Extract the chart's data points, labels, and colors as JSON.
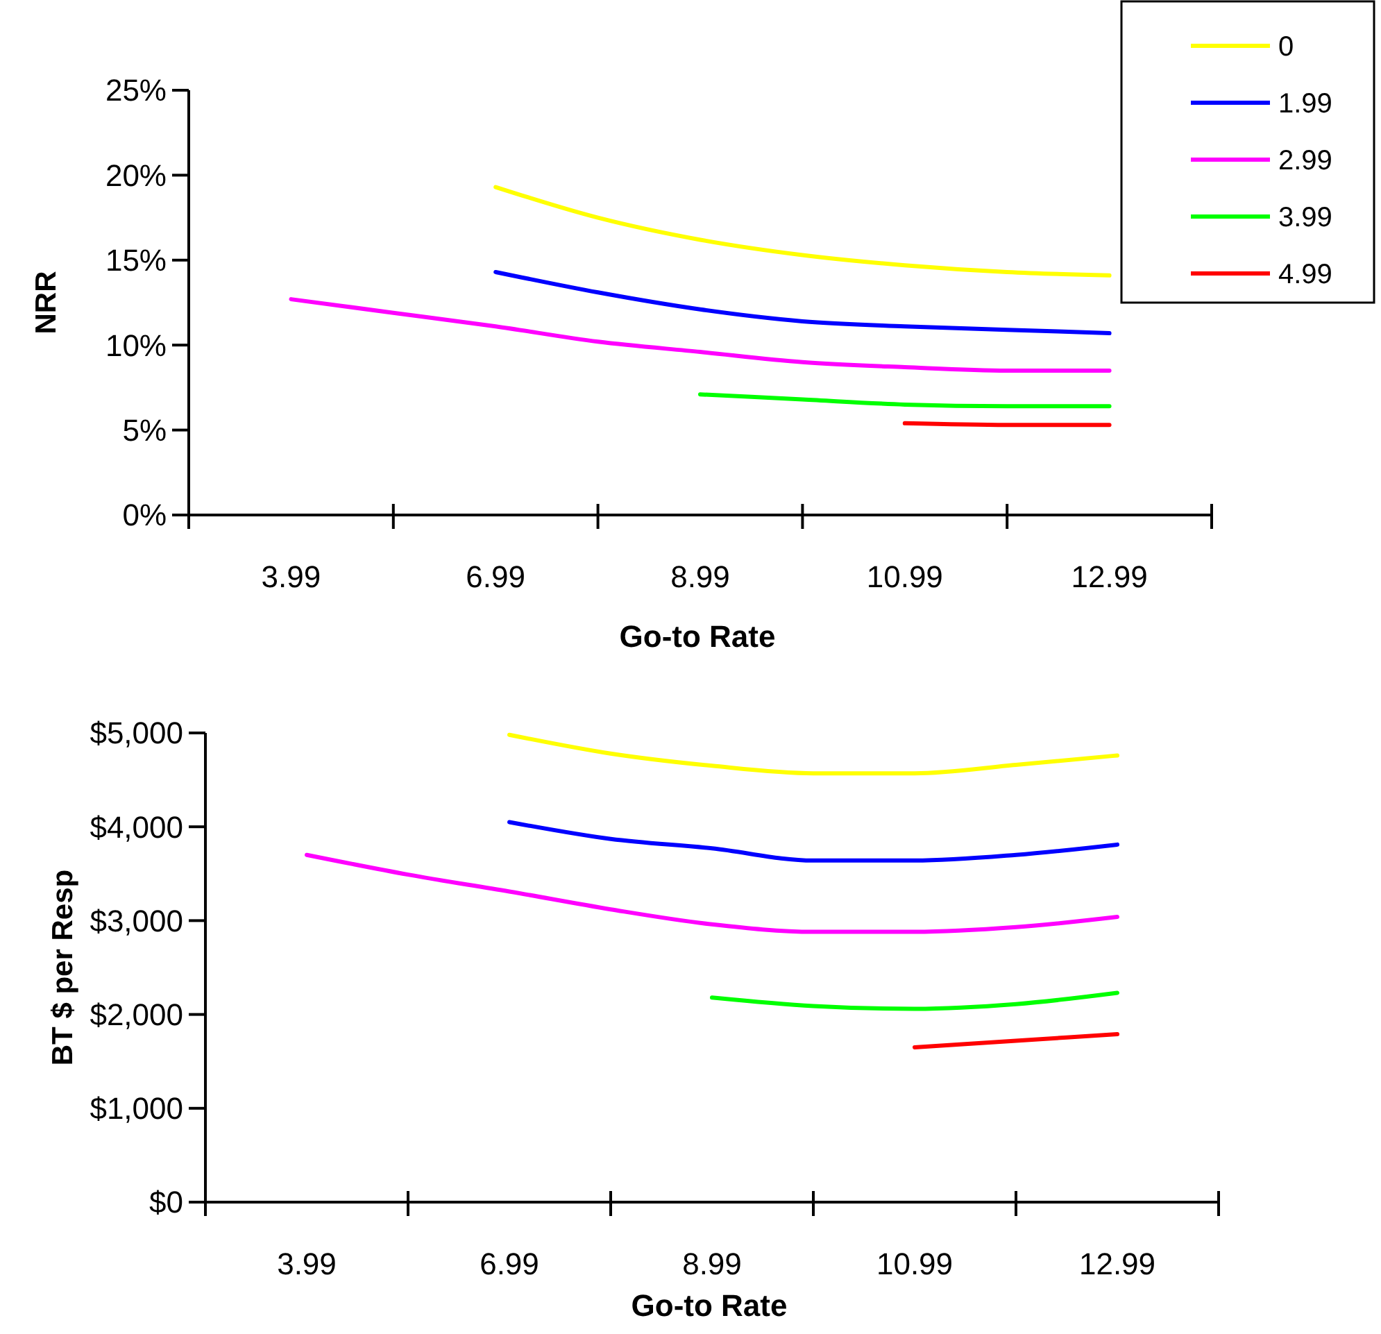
{
  "chart_data": [
    {
      "type": "line",
      "xlabel": "Go-to Rate",
      "ylabel": "NRR",
      "categories": [
        "3.99",
        null,
        "6.99",
        null,
        "8.99",
        null,
        "10.99",
        null,
        "12.99"
      ],
      "ylim": [
        0,
        25
      ],
      "yticks": [
        {
          "value": 0,
          "label": "0%"
        },
        {
          "value": 5,
          "label": "5%"
        },
        {
          "value": 10,
          "label": "10%"
        },
        {
          "value": 15,
          "label": "15%"
        },
        {
          "value": 20,
          "label": "20%"
        },
        {
          "value": 25,
          "label": "25%"
        }
      ],
      "grid": false,
      "legend": "top right",
      "series": [
        {
          "name": "0",
          "color": "#ffff00",
          "values": [
            null,
            null,
            19.3,
            17.5,
            16.2,
            15.3,
            14.7,
            14.3,
            14.1
          ]
        },
        {
          "name": "1.99",
          "color": "#0000ff",
          "values": [
            null,
            null,
            14.3,
            13.1,
            12.1,
            11.4,
            11.1,
            10.9,
            10.7
          ]
        },
        {
          "name": "2.99",
          "color": "#ff00ff",
          "values": [
            12.7,
            11.9,
            11.1,
            10.2,
            9.6,
            9.0,
            8.7,
            8.5,
            8.5
          ]
        },
        {
          "name": "3.99",
          "color": "#00ff00",
          "values": [
            null,
            null,
            null,
            null,
            7.1,
            6.8,
            6.5,
            6.4,
            6.4
          ]
        },
        {
          "name": "4.99",
          "color": "#ff0000",
          "values": [
            null,
            null,
            null,
            null,
            null,
            null,
            5.4,
            5.3,
            5.3
          ]
        }
      ]
    },
    {
      "type": "line",
      "xlabel": "Go-to Rate",
      "ylabel": "BT $ per Resp",
      "categories": [
        "3.99",
        null,
        "6.99",
        null,
        "8.99",
        null,
        "10.99",
        null,
        "12.99"
      ],
      "ylim": [
        0,
        5000
      ],
      "yticks": [
        {
          "value": 0,
          "label": "$0"
        },
        {
          "value": 1000,
          "label": "$1,000"
        },
        {
          "value": 2000,
          "label": "$2,000"
        },
        {
          "value": 3000,
          "label": "$3,000"
        },
        {
          "value": 4000,
          "label": "$4,000"
        },
        {
          "value": 5000,
          "label": "$5,000"
        }
      ],
      "grid": false,
      "legend": false,
      "series": [
        {
          "color": "#ffff00",
          "values": [
            null,
            null,
            4980,
            4780,
            4650,
            4570,
            4570,
            4660,
            4760
          ]
        },
        {
          "color": "#0000ff",
          "values": [
            null,
            null,
            4050,
            3870,
            3770,
            3640,
            3640,
            3700,
            3810
          ]
        },
        {
          "color": "#ff00ff",
          "values": [
            3700,
            3490,
            3310,
            3120,
            2960,
            2880,
            2880,
            2930,
            3040
          ]
        },
        {
          "color": "#00ff00",
          "values": [
            null,
            null,
            null,
            null,
            2180,
            2090,
            2060,
            2110,
            2230
          ]
        },
        {
          "color": "#ff0000",
          "values": [
            null,
            null,
            null,
            null,
            null,
            null,
            1650,
            1720,
            1790
          ]
        }
      ]
    }
  ]
}
